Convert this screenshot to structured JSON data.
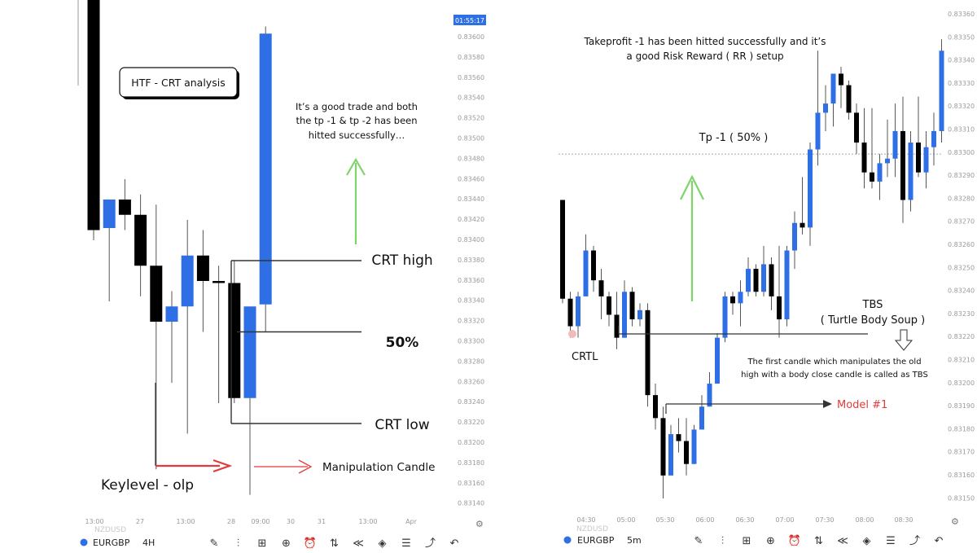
{
  "colors": {
    "bull": "#2f6fe6",
    "bear": "#000000",
    "green": "#7ed46b",
    "red": "#e23b3b",
    "axis": "#9a9a9a",
    "level": "#333333"
  },
  "left": {
    "clock": "01:55:17",
    "watermark": "NZDUSD",
    "title_box": "HTF - CRT analysis",
    "note": [
      "It’s a good trade and both",
      "the tp -1 & tp -2 has been",
      "hitted successfully…"
    ],
    "crt_high": "CRT high",
    "fifty": "50%",
    "crt_low": "CRT low",
    "keylevel": "Keylevel - olp",
    "manip": "Manipulation Candle",
    "toolbar": {
      "symbol": "EURGBP",
      "timeframe": "4H"
    },
    "chart_data": {
      "type": "candlestick",
      "symbol": "EURGBP",
      "timeframe": "4H",
      "price_ticks": [
        "0.83600",
        "0.83580",
        "0.83560",
        "0.83540",
        "0.83520",
        "0.83500",
        "0.83480",
        "0.83460",
        "0.83440",
        "0.83420",
        "0.83400",
        "0.83380",
        "0.83360",
        "0.83340",
        "0.83320",
        "0.83300",
        "0.83280",
        "0.83260",
        "0.83240",
        "0.83220",
        "0.83200",
        "0.83180",
        "0.83160",
        "0.83140"
      ],
      "time_ticks": [
        "13:00",
        "27",
        "13:00",
        "28",
        "09:00",
        "30",
        "31",
        "13:00",
        "Apr"
      ],
      "candles": [
        {
          "o": 0.837,
          "h": 0.837,
          "l": 0.834,
          "c": 0.8341
        },
        {
          "o": 0.83412,
          "h": 0.8344,
          "l": 0.8334,
          "c": 0.8344
        },
        {
          "o": 0.8344,
          "h": 0.8346,
          "l": 0.8341,
          "c": 0.83425
        },
        {
          "o": 0.83425,
          "h": 0.83445,
          "l": 0.83345,
          "c": 0.83375
        },
        {
          "o": 0.83375,
          "h": 0.83435,
          "l": 0.83175,
          "c": 0.8332
        },
        {
          "o": 0.8332,
          "h": 0.8335,
          "l": 0.8326,
          "c": 0.83335
        },
        {
          "o": 0.83335,
          "h": 0.8342,
          "l": 0.8321,
          "c": 0.83385
        },
        {
          "o": 0.83385,
          "h": 0.8341,
          "l": 0.8331,
          "c": 0.8336
        },
        {
          "o": 0.8336,
          "h": 0.83375,
          "l": 0.8324,
          "c": 0.83358
        },
        {
          "o": 0.83358,
          "h": 0.8338,
          "l": 0.8324,
          "c": 0.83245
        },
        {
          "o": 0.83245,
          "h": 0.8333,
          "l": 0.8315,
          "c": 0.83335
        },
        {
          "o": 0.83337,
          "h": 0.8361,
          "l": 0.8331,
          "c": 0.83603
        }
      ],
      "levels": {
        "crt_high": 0.8338,
        "fifty": 0.8331,
        "crt_low": 0.8322
      }
    }
  },
  "right": {
    "tp_note": [
      "Takeprofit -1 has been hitted successfully and it’s",
      "a good Risk Reward ( RR ) setup"
    ],
    "tp_label": "Tp -1 ( 50% )",
    "crtl": "CRTL",
    "tbs": "TBS",
    "tbs_sub": "( Turtle Body Soup )",
    "tbs_note": [
      "The first candle which manipulates the old",
      "high with a body close candle is called as TBS"
    ],
    "model": "Model #1",
    "watermark": "NZDUSD",
    "toolbar": {
      "symbol": "EURGBP",
      "timeframe": "5m"
    },
    "chart_data": {
      "type": "candlestick",
      "symbol": "EURGBP",
      "timeframe": "5m",
      "price_ticks": [
        "0.83360",
        "0.83350",
        "0.83340",
        "0.83330",
        "0.83320",
        "0.83310",
        "0.83300",
        "0.83290",
        "0.83280",
        "0.83270",
        "0.83260",
        "0.83250",
        "0.83240",
        "0.83230",
        "0.83220",
        "0.83210",
        "0.83200",
        "0.83190",
        "0.83180",
        "0.83170",
        "0.83160",
        "0.83150"
      ],
      "time_ticks": [
        "04:30",
        "05:00",
        "05:30",
        "06:00",
        "06:30",
        "07:00",
        "07:30",
        "08:00",
        "08:30"
      ],
      "tp_level": 0.833,
      "candles": [
        {
          "o": 0.8328,
          "h": 0.8328,
          "l": 0.83235,
          "c": 0.83237
        },
        {
          "o": 0.83237,
          "h": 0.8324,
          "l": 0.8322,
          "c": 0.83225
        },
        {
          "o": 0.83225,
          "h": 0.8324,
          "l": 0.8322,
          "c": 0.83238
        },
        {
          "o": 0.83238,
          "h": 0.83265,
          "l": 0.83238,
          "c": 0.83258
        },
        {
          "o": 0.83258,
          "h": 0.8326,
          "l": 0.8324,
          "c": 0.83245
        },
        {
          "o": 0.83245,
          "h": 0.8325,
          "l": 0.83228,
          "c": 0.83238
        },
        {
          "o": 0.83238,
          "h": 0.8324,
          "l": 0.83225,
          "c": 0.8323
        },
        {
          "o": 0.8323,
          "h": 0.8324,
          "l": 0.83215,
          "c": 0.8322
        },
        {
          "o": 0.8322,
          "h": 0.83245,
          "l": 0.8322,
          "c": 0.8324
        },
        {
          "o": 0.8324,
          "h": 0.83242,
          "l": 0.83225,
          "c": 0.83228
        },
        {
          "o": 0.83228,
          "h": 0.83235,
          "l": 0.83225,
          "c": 0.83232
        },
        {
          "o": 0.83232,
          "h": 0.83235,
          "l": 0.8319,
          "c": 0.83195
        },
        {
          "o": 0.83195,
          "h": 0.832,
          "l": 0.8318,
          "c": 0.83185
        },
        {
          "o": 0.83185,
          "h": 0.8319,
          "l": 0.8315,
          "c": 0.8316
        },
        {
          "o": 0.8316,
          "h": 0.83182,
          "l": 0.8316,
          "c": 0.83178
        },
        {
          "o": 0.83178,
          "h": 0.83185,
          "l": 0.8317,
          "c": 0.83175
        },
        {
          "o": 0.83175,
          "h": 0.83185,
          "l": 0.8316,
          "c": 0.83165
        },
        {
          "o": 0.83165,
          "h": 0.83182,
          "l": 0.83165,
          "c": 0.8318
        },
        {
          "o": 0.8318,
          "h": 0.83195,
          "l": 0.8318,
          "c": 0.8319
        },
        {
          "o": 0.8319,
          "h": 0.83205,
          "l": 0.8319,
          "c": 0.832
        },
        {
          "o": 0.832,
          "h": 0.83222,
          "l": 0.832,
          "c": 0.8322
        },
        {
          "o": 0.8322,
          "h": 0.8324,
          "l": 0.83218,
          "c": 0.83238
        },
        {
          "o": 0.83238,
          "h": 0.8324,
          "l": 0.8323,
          "c": 0.83235
        },
        {
          "o": 0.83235,
          "h": 0.83245,
          "l": 0.83225,
          "c": 0.8324
        },
        {
          "o": 0.8324,
          "h": 0.83255,
          "l": 0.83238,
          "c": 0.8325
        },
        {
          "o": 0.8325,
          "h": 0.83252,
          "l": 0.83238,
          "c": 0.8324
        },
        {
          "o": 0.8324,
          "h": 0.8326,
          "l": 0.83238,
          "c": 0.83252
        },
        {
          "o": 0.83252,
          "h": 0.83255,
          "l": 0.83232,
          "c": 0.83238
        },
        {
          "o": 0.83238,
          "h": 0.8326,
          "l": 0.8322,
          "c": 0.83228
        },
        {
          "o": 0.83228,
          "h": 0.8326,
          "l": 0.83225,
          "c": 0.83258
        },
        {
          "o": 0.83258,
          "h": 0.83275,
          "l": 0.8325,
          "c": 0.8327
        },
        {
          "o": 0.8327,
          "h": 0.8329,
          "l": 0.83265,
          "c": 0.83268
        },
        {
          "o": 0.83268,
          "h": 0.83305,
          "l": 0.8326,
          "c": 0.83302
        },
        {
          "o": 0.83302,
          "h": 0.83345,
          "l": 0.83295,
          "c": 0.83318
        },
        {
          "o": 0.83318,
          "h": 0.8333,
          "l": 0.8331,
          "c": 0.83322
        },
        {
          "o": 0.83322,
          "h": 0.83335,
          "l": 0.83312,
          "c": 0.83335
        },
        {
          "o": 0.83335,
          "h": 0.83338,
          "l": 0.8332,
          "c": 0.8333
        },
        {
          "o": 0.8333,
          "h": 0.83332,
          "l": 0.83315,
          "c": 0.83318
        },
        {
          "o": 0.83318,
          "h": 0.83322,
          "l": 0.833,
          "c": 0.83305
        },
        {
          "o": 0.83305,
          "h": 0.8332,
          "l": 0.83285,
          "c": 0.83292
        },
        {
          "o": 0.83292,
          "h": 0.8332,
          "l": 0.83285,
          "c": 0.83288
        },
        {
          "o": 0.83288,
          "h": 0.833,
          "l": 0.8328,
          "c": 0.83296
        },
        {
          "o": 0.83296,
          "h": 0.83315,
          "l": 0.8329,
          "c": 0.83298
        },
        {
          "o": 0.83298,
          "h": 0.83322,
          "l": 0.8329,
          "c": 0.8331
        },
        {
          "o": 0.8331,
          "h": 0.83325,
          "l": 0.8327,
          "c": 0.8328
        },
        {
          "o": 0.8328,
          "h": 0.8331,
          "l": 0.83275,
          "c": 0.83305
        },
        {
          "o": 0.83305,
          "h": 0.83325,
          "l": 0.8329,
          "c": 0.83292
        },
        {
          "o": 0.83292,
          "h": 0.8331,
          "l": 0.83285,
          "c": 0.83303
        },
        {
          "o": 0.83303,
          "h": 0.83318,
          "l": 0.83295,
          "c": 0.8331
        },
        {
          "o": 0.8331,
          "h": 0.8335,
          "l": 0.83305,
          "c": 0.83345
        }
      ]
    }
  }
}
